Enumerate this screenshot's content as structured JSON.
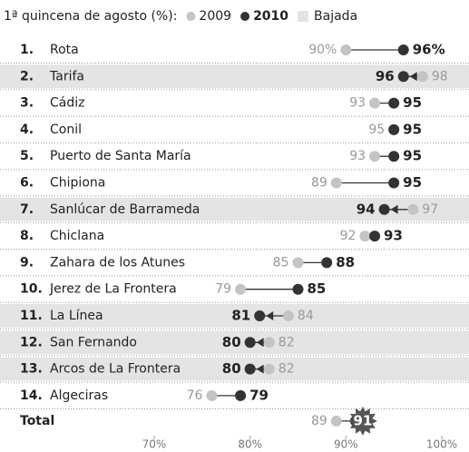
{
  "chart_data": {
    "type": "dot",
    "title": "1ª quincena de agosto (%):",
    "legend_decrease": "Bajada",
    "ranks": [
      "1.",
      "2.",
      "3.",
      "4.",
      "5.",
      "6.",
      "7.",
      "8.",
      "9.",
      "10.",
      "11.",
      "12.",
      "13.",
      "14."
    ],
    "categories": [
      "Rota",
      "Tarifa",
      "Cádiz",
      "Conil",
      "Puerto de Santa María",
      "Chipiona",
      "Sanlúcar de Barrameda",
      "Chiclana",
      "Zahara de los Atunes",
      "Jerez de La Frontera",
      "La Línea",
      "San Fernando",
      "Arcos de La Frontera",
      "Algeciras",
      "Total"
    ],
    "series": [
      {
        "name": "2009",
        "color": "#c4c4c4",
        "values": [
          90,
          98,
          93,
          95,
          93,
          89,
          97,
          92,
          85,
          79,
          84,
          82,
          82,
          76,
          89
        ],
        "value_labels": [
          "90%",
          "98",
          "93",
          "95",
          "93",
          "89",
          "97",
          "92",
          "85",
          "79",
          "84",
          "82",
          "82",
          "76",
          "89"
        ]
      },
      {
        "name": "2010",
        "color": "#333333",
        "values": [
          96,
          96,
          95,
          95,
          95,
          95,
          94,
          93,
          88,
          85,
          81,
          80,
          80,
          79,
          91
        ],
        "value_labels": [
          "96%",
          "96",
          "95",
          "95",
          "95",
          "95",
          "94",
          "93",
          "88",
          "85",
          "81",
          "80",
          "80",
          "79",
          "91"
        ]
      }
    ],
    "decrease_color": "#e4e4e4",
    "xlim": [
      70,
      100
    ],
    "xticks": [
      {
        "value": 70,
        "label": "70%"
      },
      {
        "value": 80,
        "label": "80%"
      },
      {
        "value": 90,
        "label": "90%"
      },
      {
        "value": 100,
        "label": "100%"
      }
    ]
  }
}
